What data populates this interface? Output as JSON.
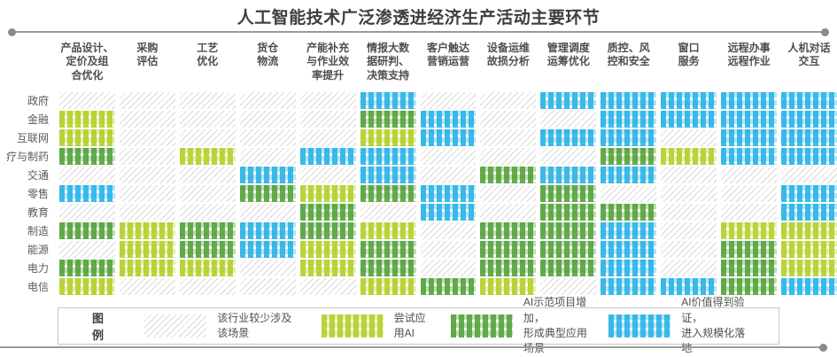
{
  "title": "人工智能技术广泛渗透进经济生产活动主要环节",
  "legend": {
    "title": "图例"
  },
  "chart_data": {
    "type": "heatmap",
    "title": "人工智能技术广泛渗透进经济生产活动主要环节",
    "columns": [
      "产品设计、\n定价及组\n合优化",
      "采购\n评估",
      "工艺\n优化",
      "货仓\n物流",
      "产能补充\n与作业效\n率提升",
      "情报大数\n据研判、\n决策支持",
      "客户触达\n营销运营",
      "设备运维\n故损分析",
      "管理调度\n运筹优化",
      "质控、风\n控和安全",
      "窗口\n服务",
      "远程办事\n远程作业",
      "人机对话\n交互"
    ],
    "rows": [
      "政府",
      "金融",
      "互联网",
      "疗与制药",
      "交通",
      "零售",
      "教育",
      "制造",
      "能源",
      "电力",
      "电信"
    ],
    "categories": [
      {
        "id": 0,
        "label": "该行业较少涉及该场景",
        "color": "#d9d9d9",
        "pattern": "diagonal-hatch"
      },
      {
        "id": 1,
        "label": "尝试应用AI",
        "color": "#b6d231",
        "pattern": "gingham"
      },
      {
        "id": 2,
        "label": "AI示范项目增加，\n形成典型应用场景",
        "color": "#55a33c",
        "pattern": "gingham"
      },
      {
        "id": 3,
        "label": "AI价值得到验证，\n进入规模化落地",
        "color": "#29b3e7",
        "pattern": "gingham"
      }
    ],
    "matrix": [
      [
        0,
        0,
        0,
        0,
        0,
        3,
        0,
        0,
        3,
        3,
        3,
        3,
        3
      ],
      [
        1,
        0,
        0,
        0,
        0,
        2,
        3,
        0,
        0,
        3,
        3,
        3,
        3
      ],
      [
        1,
        0,
        0,
        0,
        0,
        1,
        3,
        0,
        3,
        3,
        0,
        3,
        3
      ],
      [
        2,
        0,
        1,
        0,
        3,
        3,
        0,
        0,
        0,
        2,
        1,
        3,
        3
      ],
      [
        0,
        0,
        0,
        3,
        0,
        3,
        0,
        2,
        3,
        3,
        0,
        0,
        0
      ],
      [
        3,
        0,
        0,
        2,
        1,
        2,
        3,
        0,
        2,
        0,
        0,
        0,
        3
      ],
      [
        0,
        0,
        0,
        0,
        2,
        0,
        3,
        0,
        2,
        2,
        0,
        0,
        3
      ],
      [
        2,
        1,
        2,
        3,
        2,
        1,
        0,
        2,
        2,
        3,
        0,
        1,
        1
      ],
      [
        0,
        1,
        2,
        3,
        1,
        2,
        0,
        2,
        2,
        3,
        0,
        2,
        1
      ],
      [
        2,
        1,
        1,
        0,
        1,
        2,
        0,
        2,
        2,
        3,
        0,
        2,
        1
      ],
      [
        1,
        0,
        0,
        0,
        0,
        1,
        2,
        1,
        0,
        3,
        3,
        2,
        3
      ]
    ]
  }
}
